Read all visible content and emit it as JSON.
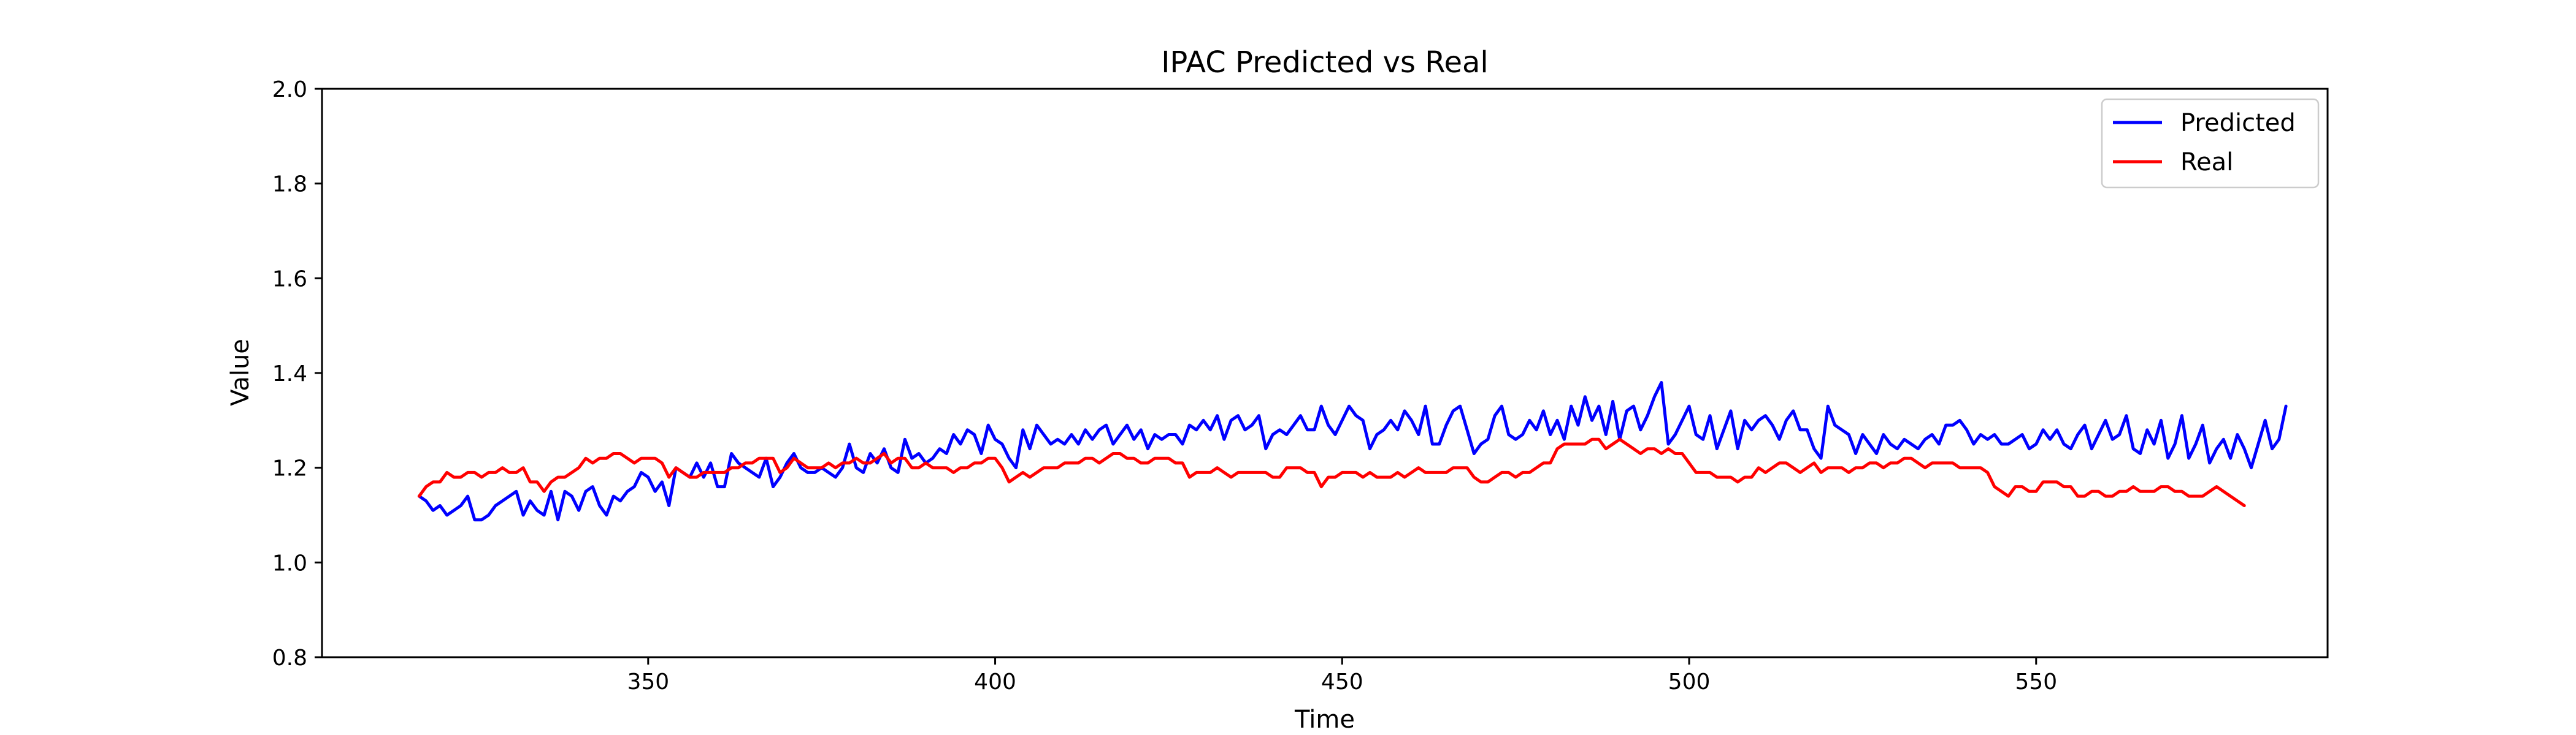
{
  "chart_data": {
    "type": "line",
    "title": "IPAC Predicted vs Real",
    "xlabel": "Time",
    "ylabel": "Value",
    "xlim": [
      303,
      592
    ],
    "ylim": [
      0.8,
      2.0
    ],
    "xticks": [
      350,
      400,
      450,
      500,
      550
    ],
    "yticks": [
      0.8,
      1.0,
      1.2,
      1.4,
      1.6,
      1.8,
      2.0
    ],
    "xtick_labels": [
      "350",
      "400",
      "450",
      "500",
      "550"
    ],
    "ytick_labels": [
      "0.8",
      "1.0",
      "1.2",
      "1.4",
      "1.6",
      "1.8",
      "2.0"
    ],
    "grid": false,
    "legend_position": "top-right",
    "x_start": 317,
    "x_step": 1,
    "series": [
      {
        "name": "Predicted",
        "color": "#0000ff",
        "values": [
          1.14,
          1.13,
          1.11,
          1.12,
          1.1,
          1.11,
          1.12,
          1.14,
          1.09,
          1.09,
          1.1,
          1.12,
          1.13,
          1.14,
          1.15,
          1.1,
          1.13,
          1.11,
          1.1,
          1.15,
          1.09,
          1.15,
          1.14,
          1.11,
          1.15,
          1.16,
          1.12,
          1.1,
          1.14,
          1.13,
          1.15,
          1.16,
          1.19,
          1.18,
          1.15,
          1.17,
          1.12,
          1.2,
          1.19,
          1.18,
          1.21,
          1.18,
          1.21,
          1.16,
          1.16,
          1.23,
          1.21,
          1.2,
          1.19,
          1.18,
          1.22,
          1.16,
          1.18,
          1.21,
          1.23,
          1.2,
          1.19,
          1.19,
          1.2,
          1.19,
          1.18,
          1.2,
          1.25,
          1.2,
          1.19,
          1.23,
          1.21,
          1.24,
          1.2,
          1.19,
          1.26,
          1.22,
          1.23,
          1.21,
          1.22,
          1.24,
          1.23,
          1.27,
          1.25,
          1.28,
          1.27,
          1.23,
          1.29,
          1.26,
          1.25,
          1.22,
          1.2,
          1.28,
          1.24,
          1.29,
          1.27,
          1.25,
          1.26,
          1.25,
          1.27,
          1.25,
          1.28,
          1.26,
          1.28,
          1.29,
          1.25,
          1.27,
          1.29,
          1.26,
          1.28,
          1.24,
          1.27,
          1.26,
          1.27,
          1.27,
          1.25,
          1.29,
          1.28,
          1.3,
          1.28,
          1.31,
          1.26,
          1.3,
          1.31,
          1.28,
          1.29,
          1.31,
          1.24,
          1.27,
          1.28,
          1.27,
          1.29,
          1.31,
          1.28,
          1.28,
          1.33,
          1.29,
          1.27,
          1.3,
          1.33,
          1.31,
          1.3,
          1.24,
          1.27,
          1.28,
          1.3,
          1.28,
          1.32,
          1.3,
          1.27,
          1.33,
          1.25,
          1.25,
          1.29,
          1.32,
          1.33,
          1.28,
          1.23,
          1.25,
          1.26,
          1.31,
          1.33,
          1.27,
          1.26,
          1.27,
          1.3,
          1.28,
          1.32,
          1.27,
          1.3,
          1.26,
          1.33,
          1.29,
          1.35,
          1.3,
          1.33,
          1.27,
          1.34,
          1.26,
          1.32,
          1.33,
          1.28,
          1.31,
          1.35,
          1.38,
          1.25,
          1.27,
          1.3,
          1.33,
          1.27,
          1.26,
          1.31,
          1.24,
          1.28,
          1.32,
          1.24,
          1.3,
          1.28,
          1.3,
          1.31,
          1.29,
          1.26,
          1.3,
          1.32,
          1.28,
          1.28,
          1.24,
          1.22,
          1.33,
          1.29,
          1.28,
          1.27,
          1.23,
          1.27,
          1.25,
          1.23,
          1.27,
          1.25,
          1.24,
          1.26,
          1.25,
          1.24,
          1.26,
          1.27,
          1.25,
          1.29,
          1.29,
          1.3,
          1.28,
          1.25,
          1.27,
          1.26,
          1.27,
          1.25,
          1.25,
          1.26,
          1.27,
          1.24,
          1.25,
          1.28,
          1.26,
          1.28,
          1.25,
          1.24,
          1.27,
          1.29,
          1.24,
          1.27,
          1.3,
          1.26,
          1.27,
          1.31,
          1.24,
          1.23,
          1.28,
          1.25,
          1.3,
          1.22,
          1.25,
          1.31,
          1.22,
          1.25,
          1.29,
          1.21,
          1.24,
          1.26,
          1.22,
          1.27,
          1.24,
          1.2,
          1.25,
          1.3,
          1.24,
          1.26,
          1.33
        ]
      },
      {
        "name": "Real",
        "color": "#ff0000",
        "values": [
          1.14,
          1.16,
          1.17,
          1.17,
          1.19,
          1.18,
          1.18,
          1.19,
          1.19,
          1.18,
          1.19,
          1.19,
          1.2,
          1.19,
          1.19,
          1.2,
          1.17,
          1.17,
          1.15,
          1.17,
          1.18,
          1.18,
          1.19,
          1.2,
          1.22,
          1.21,
          1.22,
          1.22,
          1.23,
          1.23,
          1.22,
          1.21,
          1.22,
          1.22,
          1.22,
          1.21,
          1.18,
          1.2,
          1.19,
          1.18,
          1.18,
          1.19,
          1.19,
          1.19,
          1.19,
          1.2,
          1.2,
          1.21,
          1.21,
          1.22,
          1.22,
          1.22,
          1.19,
          1.2,
          1.22,
          1.21,
          1.2,
          1.2,
          1.2,
          1.21,
          1.2,
          1.21,
          1.21,
          1.22,
          1.21,
          1.21,
          1.22,
          1.23,
          1.21,
          1.22,
          1.22,
          1.2,
          1.2,
          1.21,
          1.2,
          1.2,
          1.2,
          1.19,
          1.2,
          1.2,
          1.21,
          1.21,
          1.22,
          1.22,
          1.2,
          1.17,
          1.18,
          1.19,
          1.18,
          1.19,
          1.2,
          1.2,
          1.2,
          1.21,
          1.21,
          1.21,
          1.22,
          1.22,
          1.21,
          1.22,
          1.23,
          1.23,
          1.22,
          1.22,
          1.21,
          1.21,
          1.22,
          1.22,
          1.22,
          1.21,
          1.21,
          1.18,
          1.19,
          1.19,
          1.19,
          1.2,
          1.19,
          1.18,
          1.19,
          1.19,
          1.19,
          1.19,
          1.19,
          1.18,
          1.18,
          1.2,
          1.2,
          1.2,
          1.19,
          1.19,
          1.16,
          1.18,
          1.18,
          1.19,
          1.19,
          1.19,
          1.18,
          1.19,
          1.18,
          1.18,
          1.18,
          1.19,
          1.18,
          1.19,
          1.2,
          1.19,
          1.19,
          1.19,
          1.19,
          1.2,
          1.2,
          1.2,
          1.18,
          1.17,
          1.17,
          1.18,
          1.19,
          1.19,
          1.18,
          1.19,
          1.19,
          1.2,
          1.21,
          1.21,
          1.24,
          1.25,
          1.25,
          1.25,
          1.25,
          1.26,
          1.26,
          1.24,
          1.25,
          1.26,
          1.25,
          1.24,
          1.23,
          1.24,
          1.24,
          1.23,
          1.24,
          1.23,
          1.23,
          1.21,
          1.19,
          1.19,
          1.19,
          1.18,
          1.18,
          1.18,
          1.17,
          1.18,
          1.18,
          1.2,
          1.19,
          1.2,
          1.21,
          1.21,
          1.2,
          1.19,
          1.2,
          1.21,
          1.19,
          1.2,
          1.2,
          1.2,
          1.19,
          1.2,
          1.2,
          1.21,
          1.21,
          1.2,
          1.21,
          1.21,
          1.22,
          1.22,
          1.21,
          1.2,
          1.21,
          1.21,
          1.21,
          1.21,
          1.2,
          1.2,
          1.2,
          1.2,
          1.19,
          1.16,
          1.15,
          1.14,
          1.16,
          1.16,
          1.15,
          1.15,
          1.17,
          1.17,
          1.17,
          1.16,
          1.16,
          1.14,
          1.14,
          1.15,
          1.15,
          1.14,
          1.14,
          1.15,
          1.15,
          1.16,
          1.15,
          1.15,
          1.15,
          1.16,
          1.16,
          1.15,
          1.15,
          1.14,
          1.14,
          1.14,
          1.15,
          1.16,
          1.15,
          1.14,
          1.13,
          1.12
        ]
      }
    ]
  }
}
